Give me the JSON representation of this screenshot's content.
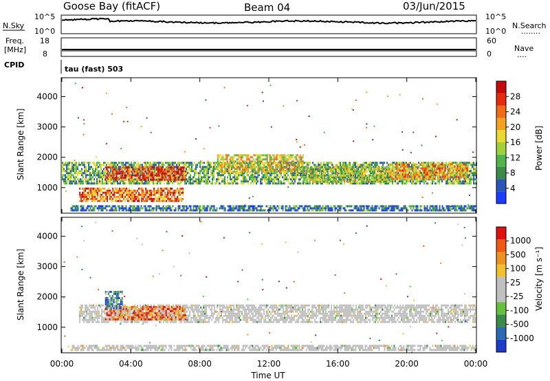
{
  "header": {
    "station": "Goose Bay (fitACF)",
    "beam": "Beam 04",
    "date": "03/Jun/2015"
  },
  "strip_nsky": {
    "left_label": "N.Sky",
    "right_label": "N.Search",
    "left_ticks": [
      "10^5",
      "10^0"
    ],
    "right_ticks": [
      "10^5",
      "10^0"
    ],
    "right_legend_marker": "........"
  },
  "strip_freq": {
    "left_label_top": "Freq.",
    "left_label_bottom": "[MHz]",
    "right_label": "Nave",
    "left_ticks": [
      "18",
      "8"
    ],
    "right_ticks": [
      "60",
      "0"
    ],
    "right_legend_marker": "...."
  },
  "cpid": {
    "label": "CPID",
    "value": "tau (fast) 503"
  },
  "chart_data": [
    {
      "type": "heatmap",
      "quantity": "Power",
      "ylabel": "Slant Range [km]",
      "yticks": [
        "4000",
        "3000",
        "2000",
        "1000"
      ],
      "yrange_km": [
        180,
        4600
      ],
      "colorbar": {
        "label": "Power [dB]",
        "ticks": [
          "28",
          "24",
          "20",
          "16",
          "12",
          "8",
          "4"
        ],
        "colors": [
          "#1a3cff",
          "#2a56b8",
          "#3c8a4a",
          "#4fb44a",
          "#9fd13a",
          "#e8d830",
          "#f5a020",
          "#f06a18",
          "#e52a10",
          "#c40a0a"
        ]
      },
      "bands": [
        {
          "t0": 0.0,
          "t1": 24.0,
          "r0": 1150,
          "r1": 1850,
          "level": 0.35
        },
        {
          "t0": 2.5,
          "t1": 7.2,
          "r0": 1250,
          "r1": 1700,
          "level": 0.85
        },
        {
          "t0": 1.0,
          "t1": 7.0,
          "r0": 550,
          "r1": 1000,
          "level": 0.75
        },
        {
          "t0": 9.0,
          "t1": 14.0,
          "r0": 1500,
          "r1": 2100,
          "level": 0.55
        },
        {
          "t0": 14.0,
          "t1": 19.0,
          "r0": 1200,
          "r1": 1700,
          "level": 0.45
        },
        {
          "t0": 19.0,
          "t1": 23.5,
          "r0": 1300,
          "r1": 1800,
          "level": 0.65
        },
        {
          "t0": 0.5,
          "t1": 24.0,
          "r0": 220,
          "r1": 420,
          "level": 0.2
        }
      ]
    },
    {
      "type": "heatmap",
      "quantity": "Velocity",
      "ylabel": "Slant Range [km]",
      "xlabel": "Time UT",
      "xticks": [
        "00:00",
        "04:00",
        "08:00",
        "12:00",
        "16:00",
        "20:00",
        "00:00"
      ],
      "yticks": [
        "4000",
        "3000",
        "2000",
        "1000"
      ],
      "yrange_km": [
        180,
        4600
      ],
      "colorbar": {
        "label": "Velocity [m s⁻¹]",
        "ticks": [
          "1000",
          "500",
          "100",
          "25",
          "-25",
          "-100",
          "-500",
          "-1000"
        ],
        "colors": [
          "#1a3cc8",
          "#2a6ab0",
          "#3c8a4a",
          "#66c040",
          "#c0c0c0",
          "#c0c0c0",
          "#f0c030",
          "#f09020",
          "#f05a10",
          "#e01010"
        ]
      },
      "bands": [
        {
          "t0": 1.0,
          "t1": 24.0,
          "r0": 1150,
          "r1": 1750,
          "level": 0.5
        },
        {
          "t0": 2.5,
          "t1": 7.2,
          "r0": 1250,
          "r1": 1700,
          "level": 0.8
        },
        {
          "t0": 2.5,
          "t1": 3.5,
          "r0": 1600,
          "r1": 2200,
          "level": 0.25
        },
        {
          "t0": 0.5,
          "t1": 24.0,
          "r0": 220,
          "r1": 420,
          "level": 0.5
        }
      ]
    }
  ]
}
